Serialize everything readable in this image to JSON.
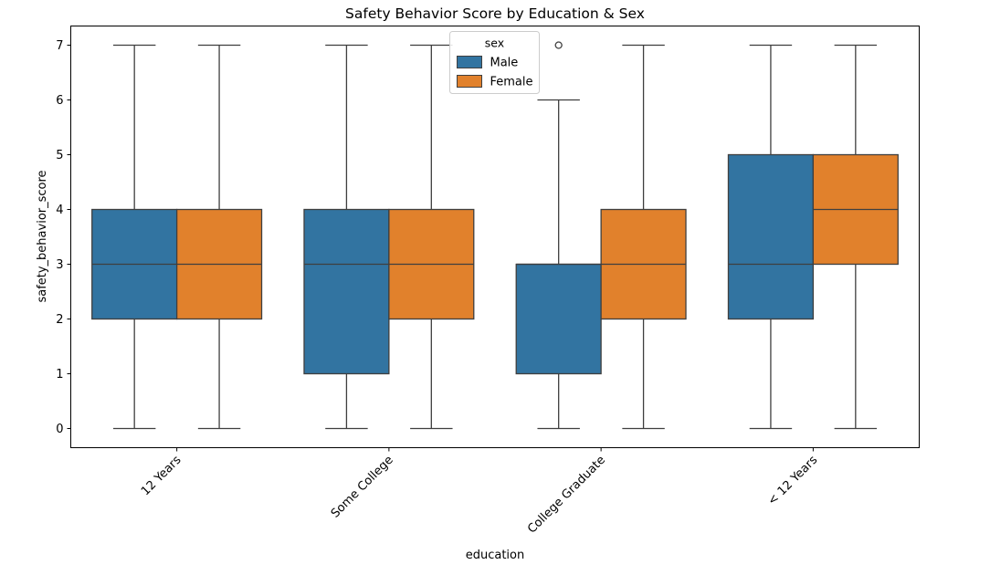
{
  "chart_data": {
    "type": "boxplot",
    "title": "Safety Behavior Score by Education & Sex",
    "xlabel": "education",
    "ylabel": "safety_behavior_score",
    "categories": [
      "12 Years",
      "Some College",
      "College Graduate",
      "< 12 Years"
    ],
    "ylim": [
      -0.35,
      7.35
    ],
    "yticks": [
      0,
      1,
      2,
      3,
      4,
      5,
      6,
      7
    ],
    "grid": false,
    "legend": {
      "title": "sex",
      "placement": "top-center",
      "entries": [
        "Male",
        "Female"
      ]
    },
    "series": [
      {
        "name": "Male",
        "color": "#3274a1",
        "boxes": [
          {
            "whisker_low": 0,
            "q1": 2,
            "median": 3,
            "q3": 4,
            "whisker_high": 7,
            "outliers": []
          },
          {
            "whisker_low": 0,
            "q1": 1,
            "median": 3,
            "q3": 4,
            "whisker_high": 7,
            "outliers": []
          },
          {
            "whisker_low": 0,
            "q1": 1,
            "median": 3,
            "q3": 3,
            "whisker_high": 6,
            "outliers": [
              7
            ]
          },
          {
            "whisker_low": 0,
            "q1": 2,
            "median": 3,
            "q3": 5,
            "whisker_high": 7,
            "outliers": []
          }
        ]
      },
      {
        "name": "Female",
        "color": "#e1812c",
        "boxes": [
          {
            "whisker_low": 0,
            "q1": 2,
            "median": 3,
            "q3": 4,
            "whisker_high": 7,
            "outliers": []
          },
          {
            "whisker_low": 0,
            "q1": 2,
            "median": 3,
            "q3": 4,
            "whisker_high": 7,
            "outliers": []
          },
          {
            "whisker_low": 0,
            "q1": 2,
            "median": 3,
            "q3": 4,
            "whisker_high": 7,
            "outliers": []
          },
          {
            "whisker_low": 0,
            "q1": 3,
            "median": 4,
            "q3": 5,
            "whisker_high": 7,
            "outliers": []
          }
        ]
      }
    ]
  }
}
